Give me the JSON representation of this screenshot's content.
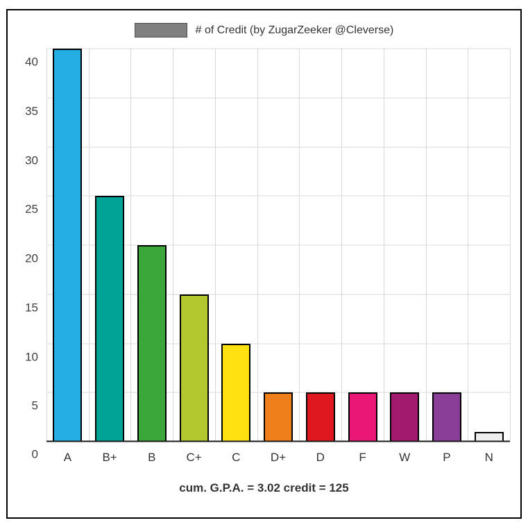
{
  "legend": {
    "label": "# of Credit (by ZugarZeeker @Cleverse)",
    "swatch_color": "#808080"
  },
  "caption": "cum. G.P.A. = 3.02 credit = 125",
  "chart_data": {
    "type": "bar",
    "title": "# of Credit (by ZugarZeeker @Cleverse)",
    "categories": [
      "A",
      "B+",
      "B",
      "C+",
      "C",
      "D+",
      "D",
      "F",
      "W",
      "P",
      "N"
    ],
    "values": [
      40,
      25,
      20,
      15,
      10,
      5,
      5,
      5,
      5,
      5,
      1
    ],
    "colors": [
      "#25aee3",
      "#00a396",
      "#3ba639",
      "#b2c82e",
      "#ffe011",
      "#ef7f1a",
      "#df1820",
      "#ea1777",
      "#a21a6d",
      "#8b3e98",
      "#ededed"
    ],
    "xlabel": "",
    "ylabel": "",
    "ylim": [
      0,
      40
    ],
    "yticks": [
      0,
      5,
      10,
      15,
      20,
      25,
      30,
      35,
      40
    ],
    "grid": true,
    "legend_position": "top",
    "annotation": "cum. G.P.A. = 3.02 credit = 125"
  }
}
